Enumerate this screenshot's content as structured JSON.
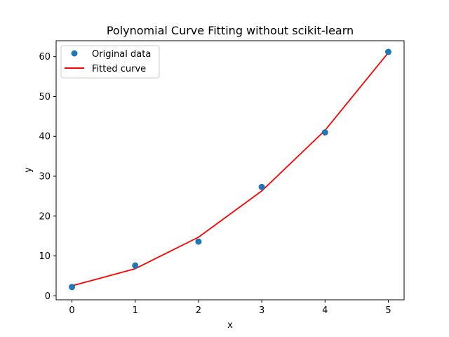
{
  "chart_data": {
    "type": "scatter",
    "title": "Polynomial Curve Fitting without scikit-learn",
    "xlabel": "x",
    "ylabel": "y",
    "xlim": [
      -0.25,
      5.25
    ],
    "ylim": [
      -1,
      64
    ],
    "xticks": [
      0,
      1,
      2,
      3,
      4,
      5
    ],
    "yticks": [
      0,
      10,
      20,
      30,
      40,
      50,
      60
    ],
    "grid": false,
    "legend": "top-left",
    "series": [
      {
        "name": "Original data",
        "kind": "scatter",
        "color": "#1f77b4",
        "x": [
          0,
          1,
          2,
          3,
          4,
          5
        ],
        "y": [
          2.2,
          7.6,
          13.6,
          27.3,
          41.0,
          61.2
        ]
      },
      {
        "name": "Fitted curve",
        "kind": "line",
        "color": "#ff0000",
        "x": [
          0,
          1,
          2,
          3,
          4,
          5
        ],
        "y": [
          2.5,
          6.8,
          14.7,
          26.3,
          41.5,
          61.0
        ]
      }
    ]
  }
}
